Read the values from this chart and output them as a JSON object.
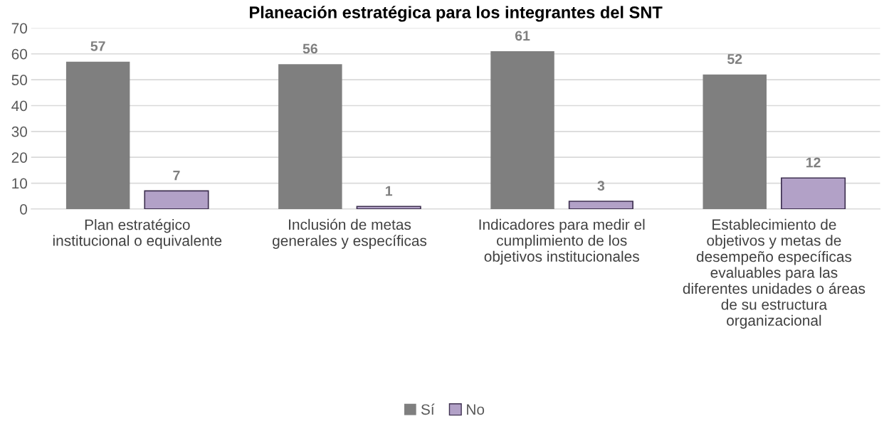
{
  "chart_data": {
    "type": "bar",
    "title": "Planeación estratégica para los integrantes del SNT",
    "categories": [
      "Plan estratégico\ninstitucional o equivalente",
      "Inclusión de metas\ngenerales y específicas",
      "Indicadores para medir el\ncumplimiento de los\nobjetivos institucionales",
      "Establecimiento de\nobjetivos y metas de\ndesempeño específicas\nevaluables para las\ndiferentes unidades o áreas\nde su estructura\norganizacional"
    ],
    "series": [
      {
        "name": "Sí",
        "color": "#7f7f7f",
        "values": [
          57,
          56,
          61,
          52
        ]
      },
      {
        "name": "No",
        "color": "#b2a1c7",
        "values": [
          7,
          1,
          3,
          12
        ]
      }
    ],
    "ylim": [
      0,
      70
    ],
    "yticks": [
      0,
      10,
      20,
      30,
      40,
      50,
      60,
      70
    ],
    "grid": "y",
    "legend": "bottom",
    "data_labels": true
  }
}
